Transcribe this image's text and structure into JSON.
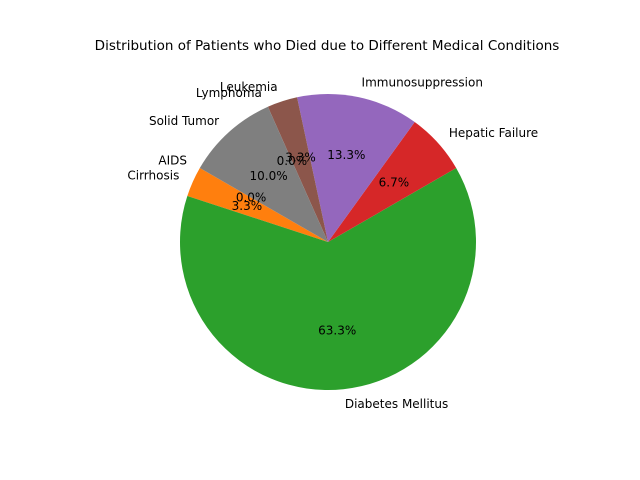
{
  "chart_data": {
    "type": "pie",
    "title": "Distribution of Patients who Died due to Different Medical Conditions",
    "start_angle_deg": 150,
    "direction": "counterclockwise",
    "slices": [
      {
        "label": "AIDS",
        "value": 0.0,
        "pct_label": "0.0%",
        "color": "#1f77b4"
      },
      {
        "label": "Cirrhosis",
        "value": 3.3,
        "pct_label": "3.3%",
        "color": "#ff7f0e"
      },
      {
        "label": "Diabetes Mellitus",
        "value": 63.3,
        "pct_label": "63.3%",
        "color": "#2ca02c"
      },
      {
        "label": "Hepatic Failure",
        "value": 6.7,
        "pct_label": "6.7%",
        "color": "#d62728"
      },
      {
        "label": "Immunosuppression",
        "value": 13.3,
        "pct_label": "13.3%",
        "color": "#9467bd"
      },
      {
        "label": "Leukemia",
        "value": 3.3,
        "pct_label": "3.3%",
        "color": "#8c564b"
      },
      {
        "label": "Lymphoma",
        "value": 0.0,
        "pct_label": "0.0%",
        "color": "#e377c2"
      },
      {
        "label": "Solid Tumor",
        "value": 10.0,
        "pct_label": "10.0%",
        "color": "#7f7f7f"
      }
    ]
  }
}
